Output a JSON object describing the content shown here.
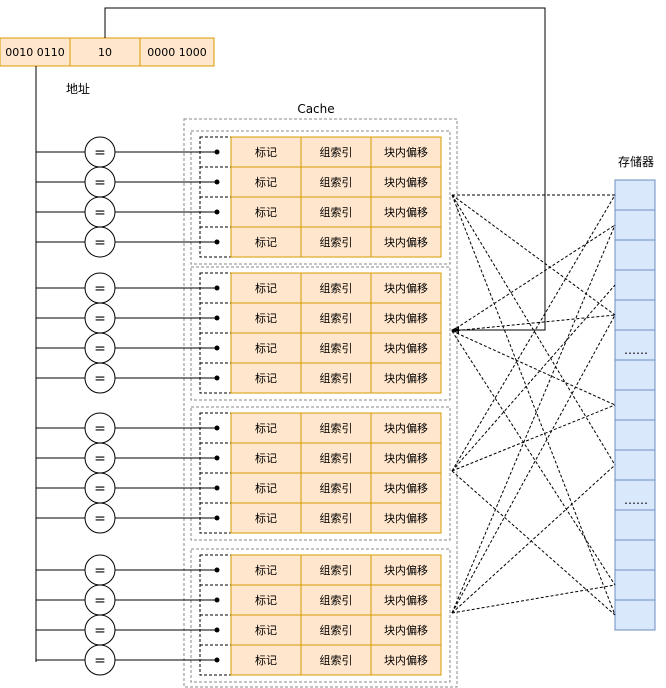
{
  "address": {
    "fields": [
      "0010 0110",
      "10",
      "0000 1000"
    ],
    "label": "地址"
  },
  "cache": {
    "title": "Cache",
    "sets": 4,
    "lines_per_set": 4,
    "line_fields": [
      "标记",
      "组索引",
      "块内偏移"
    ],
    "comparator_symbol": "="
  },
  "memory": {
    "title": "存储器",
    "blocks": 15,
    "ellipsis": [
      "……",
      "……"
    ]
  },
  "colors": {
    "address_fill": "#FFE6CC",
    "address_stroke": "#D79B00",
    "line_fill": "#FFE6CC",
    "line_stroke": "#D79B00",
    "memory_fill": "#DAE8FC",
    "memory_stroke": "#6C8EBF",
    "line_color": "#000000",
    "set_border": "#888888"
  }
}
